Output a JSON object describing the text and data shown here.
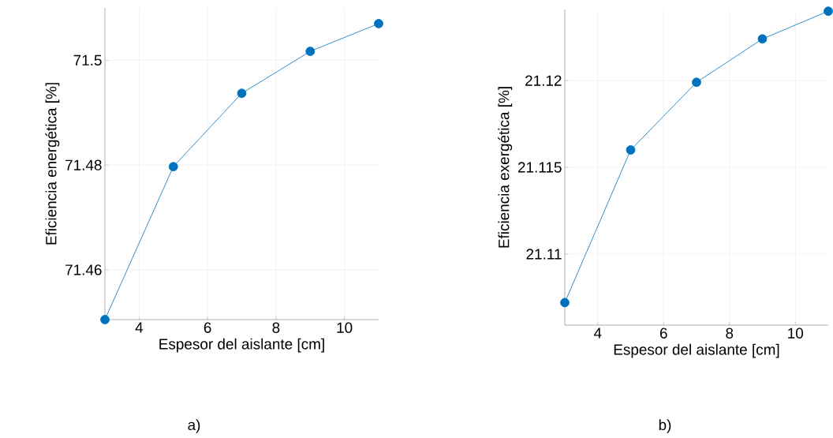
{
  "chart_data": [
    {
      "type": "line",
      "xlabel": "Espesor del aislante [cm]",
      "ylabel": "Eficiencia energética [%]",
      "x": [
        3,
        5,
        7,
        9,
        11
      ],
      "values": [
        71.4505,
        71.4797,
        71.4937,
        71.5017,
        71.507
      ],
      "color": "#0072bd",
      "xlim": [
        3,
        11
      ],
      "ylim": [
        71.4505,
        71.51
      ],
      "xticks": [
        4,
        6,
        8,
        10
      ],
      "yticks": [
        71.46,
        71.48,
        71.5
      ],
      "grid": true,
      "marker": "circle",
      "line_style": "solid",
      "annotations": [
        "a)"
      ]
    },
    {
      "type": "line",
      "xlabel": "Espesor del aislante [cm]",
      "ylabel": "Eficiencia exergética [%]",
      "x": [
        3,
        5,
        7,
        9,
        11
      ],
      "values": [
        21.1072,
        21.116,
        21.1199,
        21.1224,
        21.124
      ],
      "color": "#0072bd",
      "xlim": [
        3,
        11
      ],
      "ylim": [
        21.1059,
        21.1241
      ],
      "xticks": [
        4,
        6,
        8,
        10
      ],
      "yticks": [
        21.11,
        21.115,
        21.12
      ],
      "grid": true,
      "marker": "circle",
      "line_style": "solid",
      "annotations": [
        "b)"
      ]
    }
  ]
}
